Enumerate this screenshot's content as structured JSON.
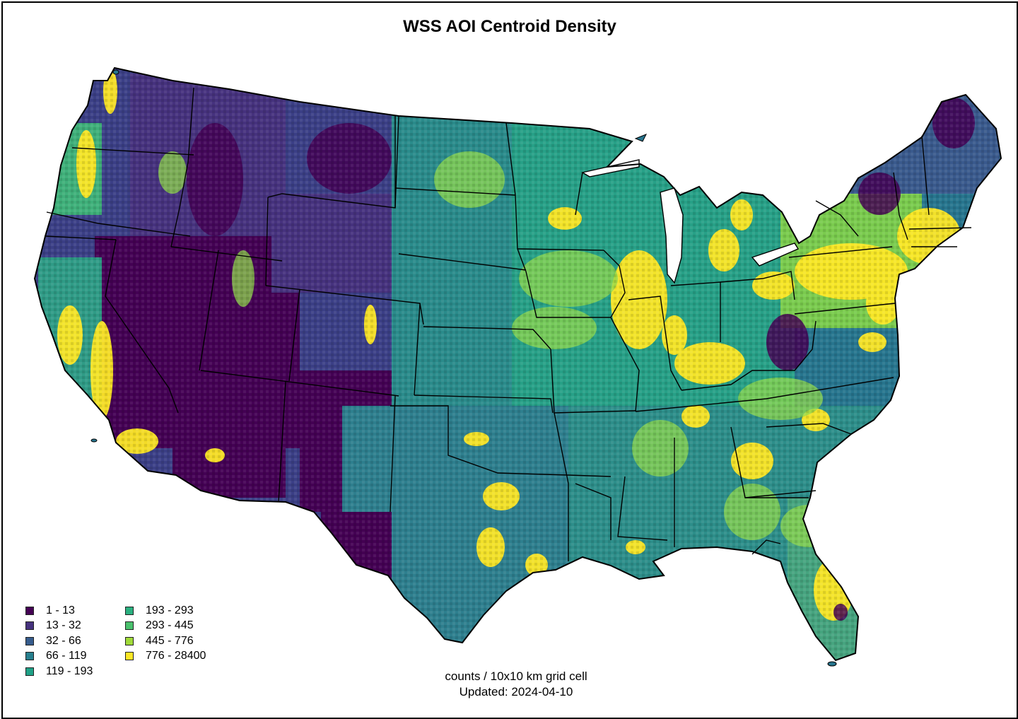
{
  "map": {
    "title": "WSS AOI Centroid Density",
    "caption_line1": "counts / 10x10 km grid cell",
    "caption_line2": "Updated: 2024-04-10",
    "legend": [
      {
        "label": "1 - 13",
        "color": "#440154"
      },
      {
        "label": "13 - 32",
        "color": "#46327e"
      },
      {
        "label": "32 - 66",
        "color": "#365c8d"
      },
      {
        "label": "66 - 119",
        "color": "#277f8e"
      },
      {
        "label": "119 - 193",
        "color": "#1fa187"
      },
      {
        "label": "193 - 293",
        "color": "#2ab07f"
      },
      {
        "label": "293 - 445",
        "color": "#4ac16d"
      },
      {
        "label": "445 - 776",
        "color": "#a0da39"
      },
      {
        "label": "776 - 28400",
        "color": "#fde725"
      }
    ]
  }
}
